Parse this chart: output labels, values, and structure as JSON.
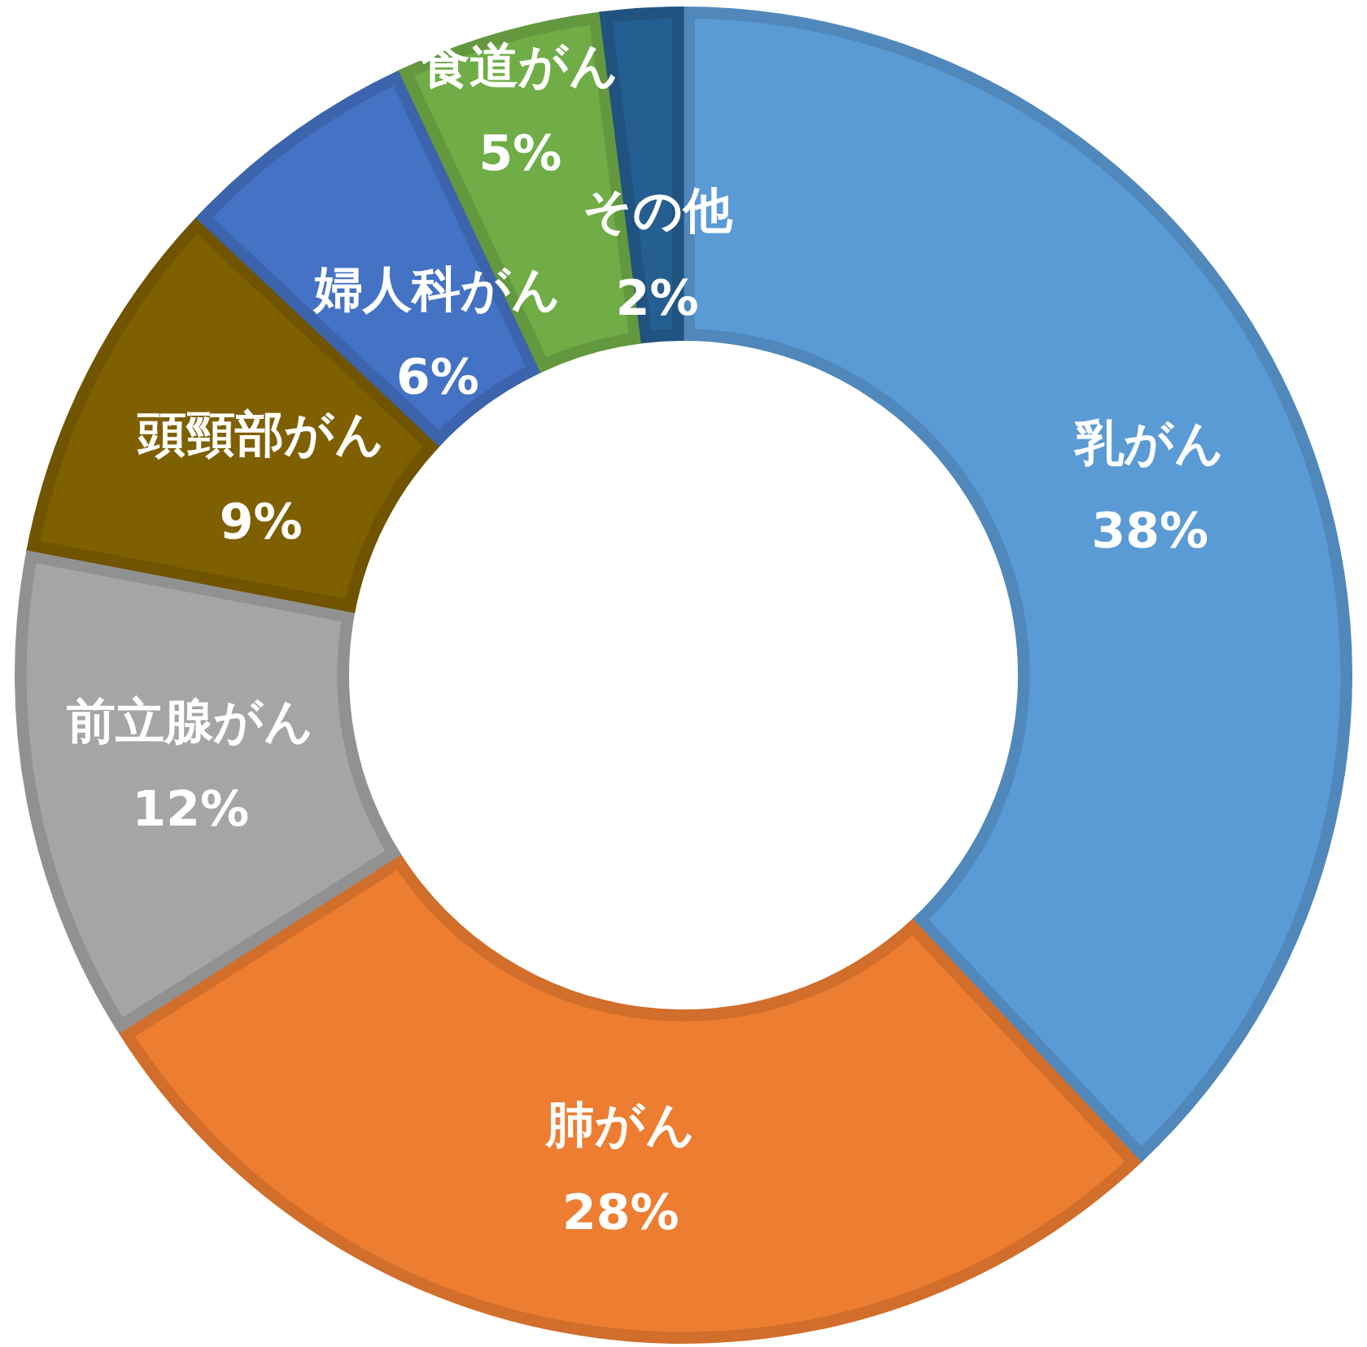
{
  "chart_data": {
    "type": "donut",
    "categories": [
      "乳がん",
      "肺がん",
      "前立腺がん",
      "頭頸部がん",
      "婦人科がん",
      "食道がん",
      "その他"
    ],
    "values": [
      38,
      28,
      12,
      9,
      6,
      5,
      2
    ],
    "colors": [
      "#5b9bd5",
      "#ed7d31",
      "#a5a5a5",
      "#7f6000",
      "#4472c4",
      "#70ad47",
      "#255e91"
    ],
    "value_labels": [
      "38%",
      "28%",
      "12%",
      "9%",
      "6%",
      "5%",
      "2%"
    ],
    "legend": false
  }
}
